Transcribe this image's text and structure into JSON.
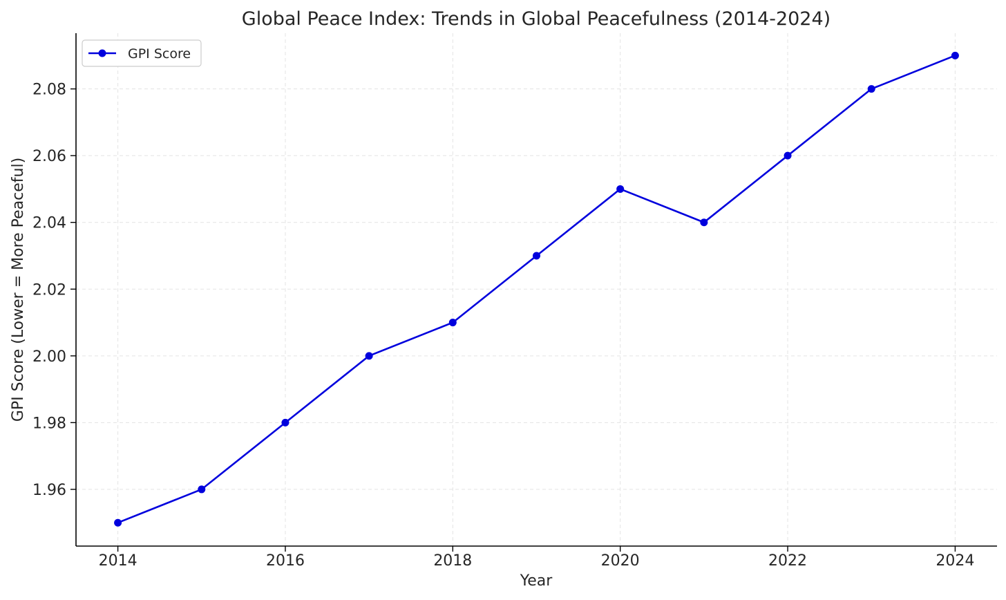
{
  "chart_data": {
    "type": "line",
    "title": "Global Peace Index: Trends in Global Peacefulness (2014-2024)",
    "xlabel": "Year",
    "ylabel": "GPI Score (Lower = More Peaceful)",
    "x": [
      2014,
      2015,
      2016,
      2017,
      2018,
      2019,
      2020,
      2021,
      2022,
      2023,
      2024
    ],
    "series": [
      {
        "name": "GPI Score",
        "color": "#0000dd",
        "values": [
          1.95,
          1.96,
          1.98,
          2.0,
          2.01,
          2.03,
          2.05,
          2.04,
          2.06,
          2.08,
          2.09
        ]
      }
    ],
    "xlim": [
      2013.5,
      2024.5
    ],
    "ylim": [
      1.943,
      2.0967
    ],
    "xticks": [
      2014,
      2016,
      2018,
      2020,
      2022,
      2024
    ],
    "xtick_labels": [
      "2014",
      "2016",
      "2018",
      "2020",
      "2022",
      "2024"
    ],
    "yticks": [
      1.96,
      1.98,
      2.0,
      2.02,
      2.04,
      2.06,
      2.08
    ],
    "ytick_labels": [
      "1.96",
      "1.98",
      "2.00",
      "2.02",
      "2.04",
      "2.06",
      "2.08"
    ],
    "grid": true,
    "legend_position": "top-left"
  }
}
